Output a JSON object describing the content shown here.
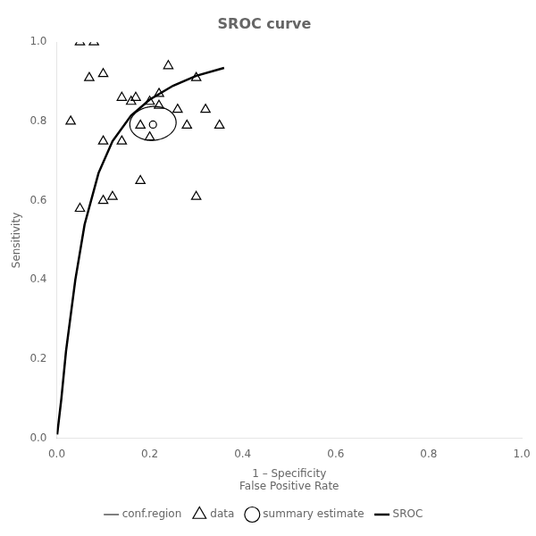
{
  "chart_data": {
    "type": "scatter",
    "title": "SROC curve",
    "xlabel": [
      "1 – Specificity",
      "False Positive Rate"
    ],
    "ylabel": "Sensitivity",
    "xlim": [
      0.0,
      1.0
    ],
    "ylim": [
      0.0,
      1.0
    ],
    "xticks": [
      {
        "value": 0,
        "label": "0.0"
      },
      0.2,
      0.4,
      0.6,
      0.8,
      {
        "value": 1,
        "label": "1.0"
      }
    ],
    "yticks": [
      {
        "value": 0,
        "label": "0.0"
      },
      0.2,
      0.4,
      0.6,
      0.8,
      {
        "value": 1,
        "label": "1.0"
      }
    ],
    "grid": false,
    "legend": "bottom",
    "series": [
      {
        "name": "SROC",
        "type": "line",
        "color": "#000000",
        "x": [
          0.001,
          0.005,
          0.01,
          0.02,
          0.04,
          0.06,
          0.09,
          0.12,
          0.16,
          0.2,
          0.25,
          0.3,
          0.36
        ],
        "values": [
          0.01,
          0.05,
          0.1,
          0.22,
          0.4,
          0.54,
          0.67,
          0.75,
          0.815,
          0.855,
          0.89,
          0.915,
          0.935
        ]
      },
      {
        "name": "conf.region",
        "type": "ellipse",
        "color": "#000000",
        "ellipse": {
          "cx": 0.207,
          "cy": 0.795,
          "width": 0.1,
          "height": 0.085,
          "angle": 10
        }
      },
      {
        "name": "data",
        "type": "scatter",
        "marker": "triangle",
        "color": "#000000",
        "x": [
          0.05,
          0.08,
          0.07,
          0.1,
          0.03,
          0.05,
          0.1,
          0.12,
          0.1,
          0.14,
          0.16,
          0.14,
          0.17,
          0.18,
          0.2,
          0.22,
          0.18,
          0.2,
          0.24,
          0.22,
          0.26,
          0.28,
          0.3,
          0.32,
          0.35,
          0.3
        ],
        "values": [
          1.0,
          1.0,
          0.91,
          0.6,
          0.8,
          0.58,
          0.75,
          0.61,
          0.92,
          0.86,
          0.85,
          0.75,
          0.86,
          0.79,
          0.85,
          0.84,
          0.65,
          0.76,
          0.94,
          0.87,
          0.83,
          0.79,
          0.91,
          0.83,
          0.79,
          0.61
        ]
      },
      {
        "name": "summary estimate",
        "type": "scatter",
        "marker": "circle",
        "color": "#000000",
        "x": [
          0.207
        ],
        "values": [
          0.792
        ]
      }
    ]
  }
}
